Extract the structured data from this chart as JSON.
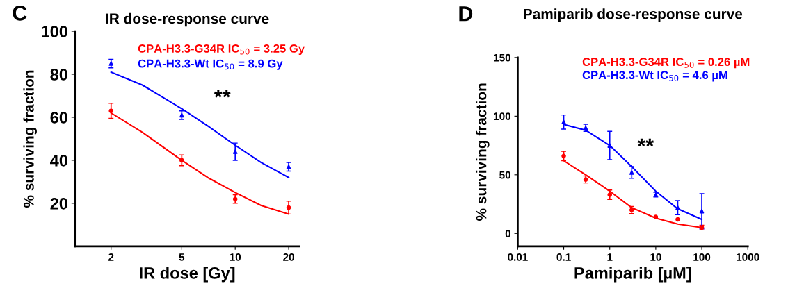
{
  "chart_data": [
    {
      "type": "scatter",
      "title": "IR dose-response curve",
      "xlabel": "IR dose [Gy]",
      "ylabel": "% surviving fraction",
      "log": "x",
      "xlim": [
        1.25,
        23
      ],
      "xticks": [
        2,
        5,
        10,
        20
      ],
      "ylim": [
        0,
        100
      ],
      "yticks": [
        20,
        40,
        60,
        80,
        100
      ],
      "grid": false,
      "legend": false,
      "annotations": [
        "C",
        "**"
      ],
      "series": [
        {
          "name": "CPA-H3.3-G34R IC$_{50}$ = 3.25 Gy",
          "color": "#ff0000",
          "marker": "circle",
          "x": [
            2,
            5,
            10,
            20
          ],
          "values": [
            63,
            40,
            22,
            18
          ],
          "errors": [
            3.5,
            2.5,
            2,
            3
          ]
        },
        {
          "name": "CPA-H3.3-Wt IC$_{50}$ = 8.9 Gy",
          "color": "#0000ff",
          "marker": "triangle",
          "x": [
            2,
            5,
            10,
            20
          ],
          "values": [
            85,
            61,
            44,
            37
          ],
          "errors": [
            2,
            2,
            4,
            2
          ]
        },
        {
          "type": "line",
          "color": "#ff0000",
          "x": [
            2,
            3,
            5,
            7,
            10,
            14,
            20
          ],
          "values": [
            62,
            53,
            40,
            32,
            25,
            19,
            15
          ]
        },
        {
          "type": "line",
          "color": "#0000ff",
          "x": [
            2,
            3,
            5,
            7,
            10,
            14,
            20
          ],
          "values": [
            81,
            75,
            64,
            56,
            47,
            39,
            32
          ]
        }
      ]
    },
    {
      "type": "scatter",
      "title": "Pamiparib dose-response curve",
      "xlabel": "Pamiparib [µM]",
      "ylabel": "% surviving fraction",
      "log": "x",
      "xlim": [
        0.01,
        1000
      ],
      "xticks": [
        0.01,
        0.1,
        1,
        10,
        100,
        1000
      ],
      "ylim": [
        -11,
        150
      ],
      "yticks": [
        0,
        50,
        100,
        150
      ],
      "grid": false,
      "legend": false,
      "annotations": [
        "D",
        "**"
      ],
      "series": [
        {
          "name": "CPA-H3.3-G34R IC$_{50}$ = 0.26 µM",
          "color": "#ff0000",
          "marker": "circle",
          "x": [
            0.1,
            0.3,
            1,
            3,
            10,
            30,
            100
          ],
          "values": [
            66,
            46,
            33,
            20,
            14,
            12,
            5
          ],
          "errors": [
            4,
            3,
            4,
            3,
            null,
            null,
            2
          ]
        },
        {
          "name": "CPA-H3.3-Wt IC$_{50}$ = 4.6 µM",
          "color": "#0000ff",
          "marker": "triangle",
          "x": [
            0.1,
            0.3,
            1,
            3,
            10,
            30,
            100
          ],
          "values": [
            95,
            90,
            75,
            52,
            33,
            22,
            19
          ],
          "errors": [
            6,
            3,
            12,
            5,
            2,
            6,
            15
          ]
        },
        {
          "type": "line",
          "color": "#ff0000",
          "x": [
            0.1,
            0.3,
            1,
            3,
            10,
            30,
            100
          ],
          "values": [
            62,
            50,
            36,
            22,
            13,
            8,
            5
          ]
        },
        {
          "type": "line",
          "color": "#0000ff",
          "x": [
            0.1,
            0.3,
            1,
            3,
            10,
            30,
            100
          ],
          "values": [
            93,
            88,
            75,
            57,
            36,
            21,
            12
          ]
        }
      ]
    }
  ]
}
